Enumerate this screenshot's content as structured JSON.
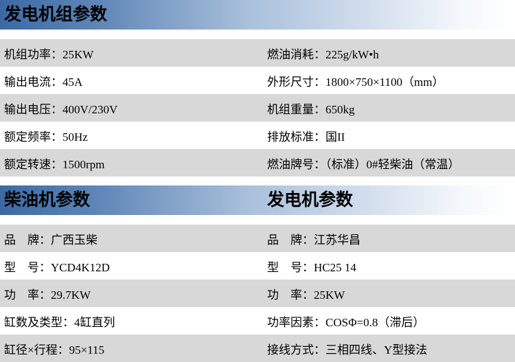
{
  "colors": {
    "header_gradient_start": "#3c69a4",
    "header_gradient_mid": "#a8c0db",
    "header_gradient_end": "#ffffff",
    "stripe_gray": "#d8d8d8",
    "row_white": "#ffffff",
    "text": "#000000"
  },
  "generator_set": {
    "title": "发电机组参数",
    "rows": [
      {
        "left": "机组功率：25KW",
        "right": "燃油消耗：225g/kW•h"
      },
      {
        "left": "输出电流：45A",
        "right": "外形尺寸：1800×750×1100（mm）"
      },
      {
        "left": "输出电压：400V/230V",
        "right": "机组重量：650kg"
      },
      {
        "left": "额定频率：50Hz",
        "right": "排放标准：国II"
      },
      {
        "left": "额定转速：1500rpm",
        "right": "燃油牌号：（标准）0#轻柴油（常温）"
      }
    ]
  },
  "sub_headers": {
    "left": "柴油机参数",
    "right": "发电机参数"
  },
  "engine_and_generator": {
    "rows": [
      {
        "left": "品　牌：广西玉柴",
        "right": "品　牌：江苏华昌"
      },
      {
        "left": "型　号：YCD4K12D",
        "right": "型　号：HC25 14"
      },
      {
        "left": "功　率：29.7KW",
        "right": "功　率：25KW"
      },
      {
        "left": "缸数及类型：4缸直列",
        "right": "功率因素：COSΦ=0.8（滞后）"
      },
      {
        "left": "缸径×行程：95×115",
        "right": "接线方式：三相四线、Y型接法"
      }
    ]
  }
}
